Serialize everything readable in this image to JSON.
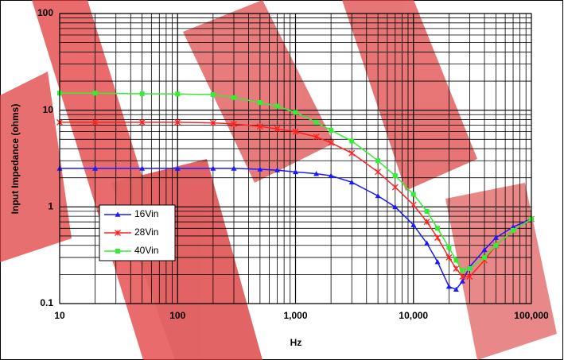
{
  "chart_data": {
    "type": "line",
    "x_label": "Hz",
    "y_label": "Input Impedance (ohms)",
    "x": [
      10,
      20,
      50,
      100,
      200,
      300,
      500,
      700,
      1000,
      1500,
      2000,
      3000,
      5000,
      7000,
      10000,
      13000,
      16000,
      20000,
      23000,
      26000,
      30000,
      40000,
      50000,
      70000,
      100000
    ],
    "series": [
      {
        "name": "16Vin",
        "color": "#1a1aff",
        "marker": "triangle",
        "values": [
          2.5,
          2.5,
          2.5,
          2.5,
          2.5,
          2.5,
          2.45,
          2.4,
          2.3,
          2.2,
          2.1,
          1.8,
          1.3,
          1.0,
          0.65,
          0.42,
          0.27,
          0.15,
          0.14,
          0.17,
          0.24,
          0.36,
          0.48,
          0.62,
          0.75
        ]
      },
      {
        "name": "28Vin",
        "color": "#ff2020",
        "marker": "star",
        "values": [
          7.5,
          7.5,
          7.5,
          7.5,
          7.4,
          7.2,
          6.8,
          6.4,
          6.0,
          5.3,
          4.6,
          3.6,
          2.3,
          1.6,
          1.05,
          0.7,
          0.48,
          0.3,
          0.23,
          0.19,
          0.19,
          0.28,
          0.4,
          0.57,
          0.75
        ]
      },
      {
        "name": "40Vin",
        "color": "#33ee33",
        "marker": "square",
        "values": [
          15,
          15,
          14.8,
          14.7,
          14.5,
          13.5,
          12,
          11,
          9.5,
          7.5,
          6.2,
          4.8,
          3.0,
          2.1,
          1.35,
          0.9,
          0.6,
          0.38,
          0.28,
          0.22,
          0.23,
          0.3,
          0.4,
          0.57,
          0.75
        ]
      }
    ],
    "xlog": true,
    "ylog": true,
    "xlim": [
      10,
      100000
    ],
    "ylim": [
      0.1,
      100
    ],
    "xticks": [
      10,
      100,
      {
        "value": 1000,
        "label": "1,000"
      },
      {
        "value": 10000,
        "label": "10,000"
      },
      {
        "value": 100000,
        "label": "100,000"
      }
    ],
    "yticks": [
      0.1,
      1,
      10,
      100
    ],
    "xminorticks": [
      20,
      30,
      40,
      50,
      60,
      70,
      80,
      90,
      200,
      300,
      400,
      500,
      600,
      700,
      800,
      900,
      2000,
      3000,
      4000,
      5000,
      6000,
      7000,
      8000,
      9000,
      20000,
      30000,
      40000,
      50000,
      60000,
      70000,
      80000,
      90000
    ],
    "yminorticks": [
      0.2,
      0.3,
      0.4,
      0.5,
      0.6,
      0.7,
      0.8,
      0.9,
      2,
      3,
      4,
      5,
      6,
      7,
      8,
      9,
      20,
      30,
      40,
      50,
      60,
      70,
      80,
      90
    ],
    "grid": true,
    "legend": "lower-left"
  }
}
